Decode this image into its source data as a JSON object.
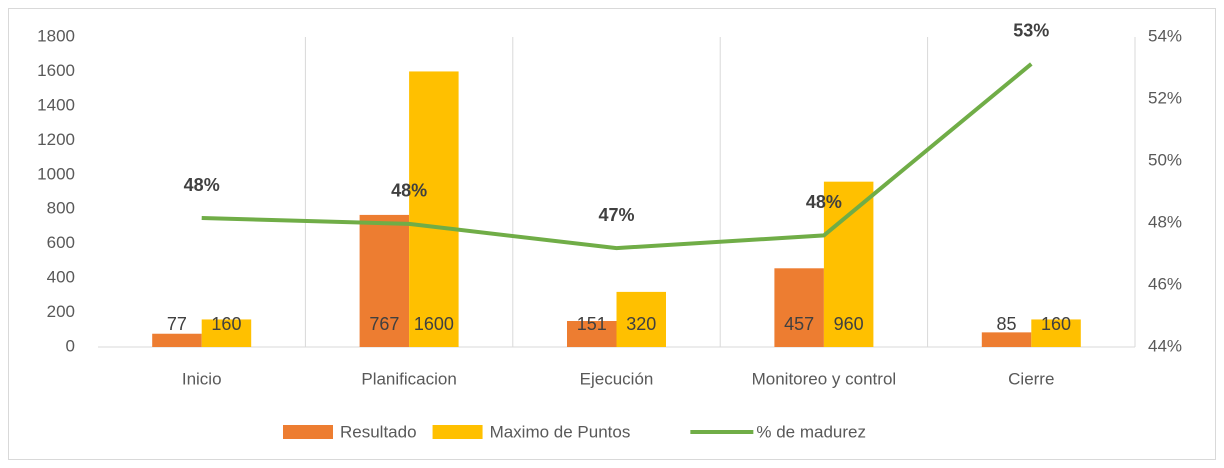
{
  "chart_data": {
    "type": "bar_line",
    "categories": [
      "Inicio",
      "Planificacion",
      "Ejecución",
      "Monitoreo y control",
      "Cierre"
    ],
    "series": [
      {
        "name": "Resultado",
        "type": "bar",
        "color": "#ED7D31",
        "values": [
          77,
          767,
          151,
          457,
          85
        ]
      },
      {
        "name": "Maximo de Puntos",
        "type": "bar",
        "color": "#FFC000",
        "values": [
          160,
          1600,
          320,
          960,
          160
        ]
      },
      {
        "name": "% de madurez",
        "type": "line",
        "axis": "y2",
        "color": "#70AD47",
        "values": [
          48.16,
          47.97,
          47.19,
          47.6,
          53.13
        ],
        "value_labels": [
          "48%",
          "48%",
          "47%",
          "48%",
          "53%"
        ]
      }
    ],
    "ylim": [
      0,
      1800
    ],
    "yticks": [
      0,
      200,
      400,
      600,
      800,
      1000,
      1200,
      1400,
      1600,
      1800
    ],
    "y2lim": [
      44,
      54
    ],
    "y2ticks": [
      {
        "value": 44,
        "label": "44%"
      },
      {
        "value": 46,
        "label": "46%"
      },
      {
        "value": 48,
        "label": "48%"
      },
      {
        "value": 50,
        "label": "50%"
      },
      {
        "value": 52,
        "label": "52%"
      },
      {
        "value": 54,
        "label": "54%"
      }
    ],
    "legend": "bottom"
  }
}
